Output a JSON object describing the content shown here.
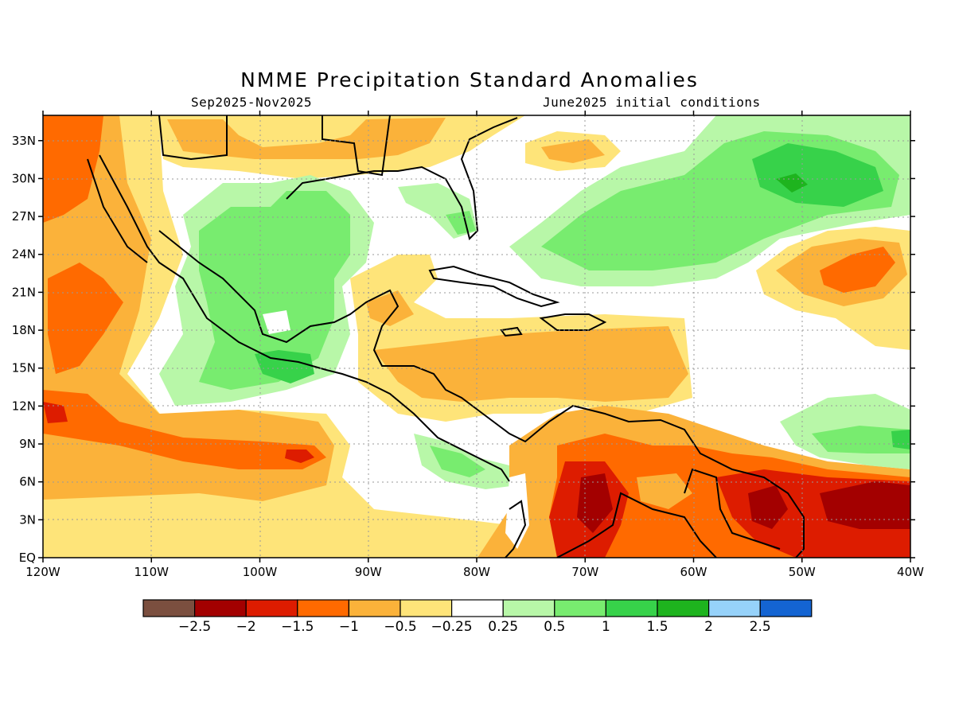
{
  "title": "NMME Precipitation Standard Anomalies",
  "period": "Sep2025-Nov2025",
  "initial_conditions": "June2025 initial conditions",
  "map": {
    "lon_ticks": [
      "120W",
      "110W",
      "100W",
      "90W",
      "80W",
      "70W",
      "60W",
      "50W",
      "40W"
    ],
    "lat_ticks": [
      "33N",
      "30N",
      "27N",
      "24N",
      "21N",
      "18N",
      "15N",
      "12N",
      "9N",
      "6N",
      "3N",
      "EQ"
    ],
    "lon_range": [
      -120,
      -40
    ],
    "lat_range": [
      0,
      35
    ],
    "gridlines": true
  },
  "legend": {
    "colors": [
      "#7b4f3f",
      "#a30000",
      "#dd1c00",
      "#ff6a00",
      "#fbb23a",
      "#fee479",
      "#ffffff",
      "#b8f7a8",
      "#78ec6f",
      "#37d24a",
      "#1eb41e",
      "#96d2fa",
      "#1464d2"
    ],
    "labels": [
      "-2.5",
      "-2",
      "-1.5",
      "-1",
      "-0.5",
      "-0.25",
      "0.25",
      "0.5",
      "1",
      "1.5",
      "2",
      "2.5"
    ]
  }
}
